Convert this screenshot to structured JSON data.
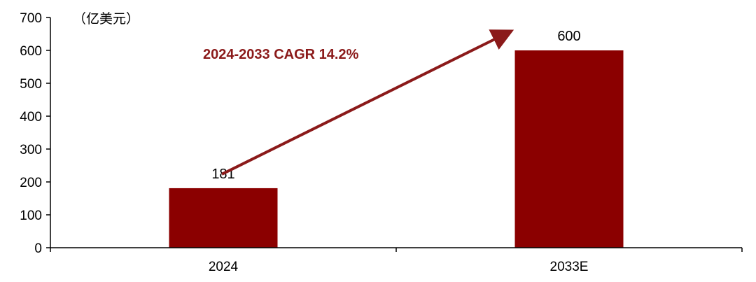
{
  "chart_data": {
    "type": "bar",
    "title": "",
    "xlabel": "",
    "ylabel": "",
    "unit_label": "（亿美元）",
    "categories": [
      "2024",
      "2033E"
    ],
    "values": [
      181,
      600
    ],
    "data_labels": [
      "181",
      "600"
    ],
    "ylim": [
      0,
      700
    ],
    "yticks": [
      0,
      100,
      200,
      300,
      400,
      500,
      600,
      700
    ],
    "grid": false,
    "legend": "none",
    "annotation": {
      "text": "2024-2033 CAGR 14.2%",
      "arrow_from": "2024",
      "arrow_to": "2033E"
    },
    "colors": {
      "bar": "#8B0000",
      "arrow": "#8B1A1A",
      "annotation_text": "#8B1A1A",
      "axis": "#000000"
    }
  }
}
